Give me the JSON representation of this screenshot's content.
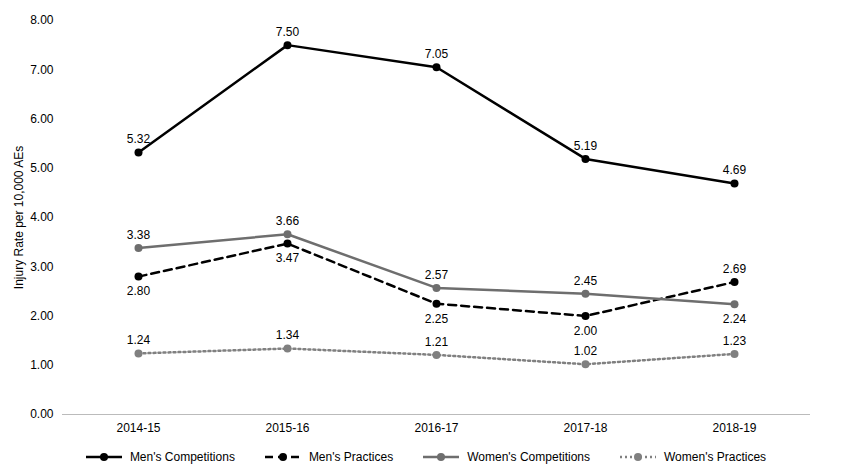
{
  "chart_data": {
    "type": "line",
    "ylabel": "Injury Rate per 10,000 AEs",
    "categories": [
      "2014-15",
      "2015-16",
      "2016-17",
      "2017-18",
      "2018-19"
    ],
    "ylim": [
      0,
      8
    ],
    "yticks": [
      {
        "value": 0,
        "label": "0.00"
      },
      {
        "value": 1,
        "label": "1.00"
      },
      {
        "value": 2,
        "label": "2.00"
      },
      {
        "value": 3,
        "label": "3.00"
      },
      {
        "value": 4,
        "label": "4.00"
      },
      {
        "value": 5,
        "label": "5.00"
      },
      {
        "value": 6,
        "label": "6.00"
      },
      {
        "value": 7,
        "label": "7.00"
      },
      {
        "value": 8,
        "label": "8.00"
      }
    ],
    "grid": false,
    "legend": "bottom",
    "data_labels": true,
    "series": [
      {
        "name": "Men's Competitions",
        "color": "#000000",
        "line_style": "solid",
        "marker": "circle",
        "values": [
          5.32,
          7.5,
          7.05,
          5.19,
          4.69
        ],
        "value_labels": [
          "5.32",
          "7.50",
          "7.05",
          "5.19",
          "4.69"
        ]
      },
      {
        "name": "Men's Practices",
        "color": "#000000",
        "line_style": "dashed",
        "marker": "circle",
        "values": [
          2.8,
          3.47,
          2.25,
          2.0,
          2.69
        ],
        "value_labels": [
          "2.80",
          "3.47",
          "2.25",
          "2.00",
          "2.69"
        ]
      },
      {
        "name": "Women's Competitions",
        "color": "#6e6e6e",
        "line_style": "solid",
        "marker": "circle",
        "values": [
          3.38,
          3.66,
          2.57,
          2.45,
          2.24
        ],
        "value_labels": [
          "3.38",
          "3.66",
          "2.57",
          "2.45",
          "2.24"
        ]
      },
      {
        "name": "Women's Practices",
        "color": "#808080",
        "line_style": "dotted",
        "marker": "circle",
        "values": [
          1.24,
          1.34,
          1.21,
          1.02,
          1.23
        ],
        "value_labels": [
          "1.24",
          "1.34",
          "1.21",
          "1.02",
          "1.23"
        ]
      }
    ]
  }
}
